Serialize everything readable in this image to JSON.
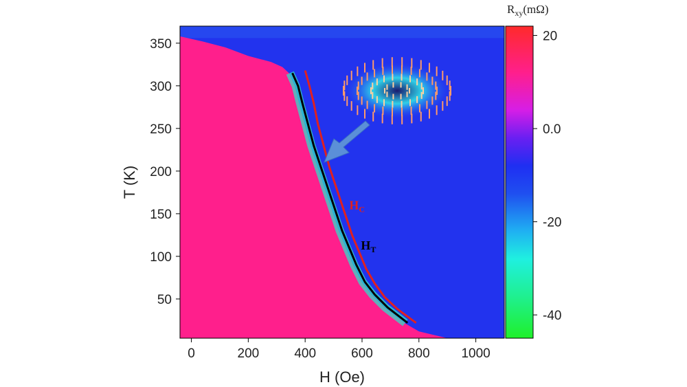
{
  "chart_data": {
    "type": "heatmap",
    "xlabel": "H (Oe)",
    "ylabel": "T (K)",
    "xlim": [
      -40,
      1100
    ],
    "ylim": [
      4,
      370
    ],
    "x_ticks": [
      0,
      200,
      400,
      600,
      800,
      1000
    ],
    "y_ticks": [
      50,
      100,
      150,
      200,
      250,
      300,
      350
    ],
    "colorbar": {
      "title": "Rxy(mΩ)",
      "title_main": "R",
      "title_sub": "xy",
      "title_unit": "(mΩ)",
      "ticks": [
        20,
        0.0,
        -20,
        -40
      ],
      "tick_labels": [
        "20",
        "0.0",
        "-20",
        "-40"
      ],
      "range": [
        -45,
        22
      ],
      "stops": [
        {
          "value": 22,
          "color": "#ff2a2a"
        },
        {
          "value": 12,
          "color": "#ff1f8c"
        },
        {
          "value": 4,
          "color": "#d61ee6"
        },
        {
          "value": -2,
          "color": "#6a1ff2"
        },
        {
          "value": -8,
          "color": "#1f2ff2"
        },
        {
          "value": -14,
          "color": "#1f4ff0"
        },
        {
          "value": -22,
          "color": "#1fb0f2"
        },
        {
          "value": -28,
          "color": "#1ff0e0"
        },
        {
          "value": -36,
          "color": "#1ff090"
        },
        {
          "value": -45,
          "color": "#1ff02a"
        }
      ]
    },
    "regions": {
      "low_field_color": "#ff1f8c",
      "high_field_color": "#2233ee"
    },
    "series": [
      {
        "name": "HT",
        "label_main": "H",
        "label_sub": "T",
        "color": "#000000",
        "points": [
          [
            355,
            315
          ],
          [
            375,
            300
          ],
          [
            390,
            280
          ],
          [
            410,
            255
          ],
          [
            430,
            230
          ],
          [
            450,
            210
          ],
          [
            470,
            190
          ],
          [
            490,
            170
          ],
          [
            510,
            150
          ],
          [
            530,
            130
          ],
          [
            555,
            110
          ],
          [
            580,
            90
          ],
          [
            610,
            70
          ],
          [
            645,
            55
          ],
          [
            690,
            40
          ],
          [
            760,
            22
          ]
        ]
      },
      {
        "name": "HC",
        "label_main": "H",
        "label_sub": "C",
        "color": "#e02020",
        "points": [
          [
            400,
            318
          ],
          [
            415,
            300
          ],
          [
            430,
            280
          ],
          [
            445,
            255
          ],
          [
            465,
            230
          ],
          [
            485,
            205
          ],
          [
            505,
            185
          ],
          [
            525,
            165
          ],
          [
            545,
            145
          ],
          [
            565,
            125
          ],
          [
            590,
            105
          ],
          [
            615,
            85
          ],
          [
            645,
            68
          ],
          [
            680,
            52
          ],
          [
            725,
            38
          ],
          [
            790,
            22
          ]
        ]
      }
    ],
    "annotation": {
      "type": "skyrmion-inset",
      "arrow_color": "#5b8fd8"
    },
    "grid": false
  }
}
